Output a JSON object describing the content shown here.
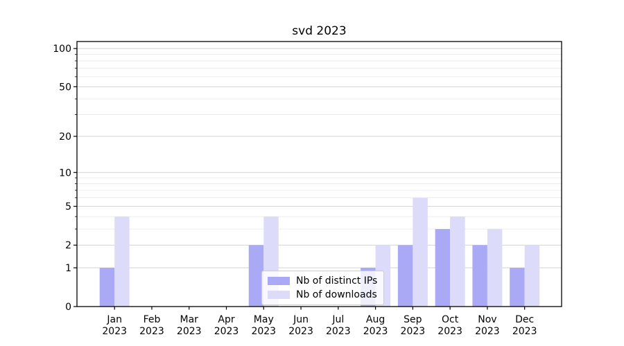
{
  "figure": {
    "background": "#ffffff"
  },
  "chart_data": {
    "type": "bar",
    "title": "svd 2023",
    "categories": [
      "Jan 2023",
      "Feb 2023",
      "Mar 2023",
      "Apr 2023",
      "May 2023",
      "Jun 2023",
      "Jul 2023",
      "Aug 2023",
      "Sep 2023",
      "Oct 2023",
      "Nov 2023",
      "Dec 2023"
    ],
    "x_tick_label_lines": [
      [
        "Jan",
        "2023"
      ],
      [
        "Feb",
        "2023"
      ],
      [
        "Mar",
        "2023"
      ],
      [
        "Apr",
        "2023"
      ],
      [
        "May",
        "2023"
      ],
      [
        "Jun",
        "2023"
      ],
      [
        "Jul",
        "2023"
      ],
      [
        "Aug",
        "2023"
      ],
      [
        "Sep",
        "2023"
      ],
      [
        "Oct",
        "2023"
      ],
      [
        "Nov",
        "2023"
      ],
      [
        "Dec",
        "2023"
      ]
    ],
    "series": [
      {
        "name": "Nb of distinct IPs",
        "color": "#a9a9f5",
        "values": [
          1,
          0,
          0,
          0,
          2,
          0,
          0,
          1,
          2,
          3,
          2,
          1
        ]
      },
      {
        "name": "Nb of downloads",
        "color": "#dcdcfa",
        "values": [
          4,
          0,
          0,
          0,
          4,
          0,
          0,
          2,
          6,
          4,
          3,
          2
        ]
      }
    ],
    "y_axis": {
      "scale": "log1p",
      "tick_values": [
        0,
        1,
        2,
        5,
        10,
        20,
        50,
        100
      ],
      "tick_labels": [
        "0",
        "1",
        "2",
        "5",
        "10",
        "20",
        "50",
        "100"
      ],
      "minor_gridline_values": [
        3,
        4,
        6,
        7,
        8,
        9,
        30,
        40,
        60,
        70,
        80,
        90
      ],
      "range_max": 113.5
    },
    "legend": {
      "position": "lower center"
    },
    "grid": true,
    "colors": {
      "axis": "#000000",
      "major_grid": "#d2d2d2",
      "minor_grid": "#ececec",
      "tick_label": "#000000"
    }
  }
}
